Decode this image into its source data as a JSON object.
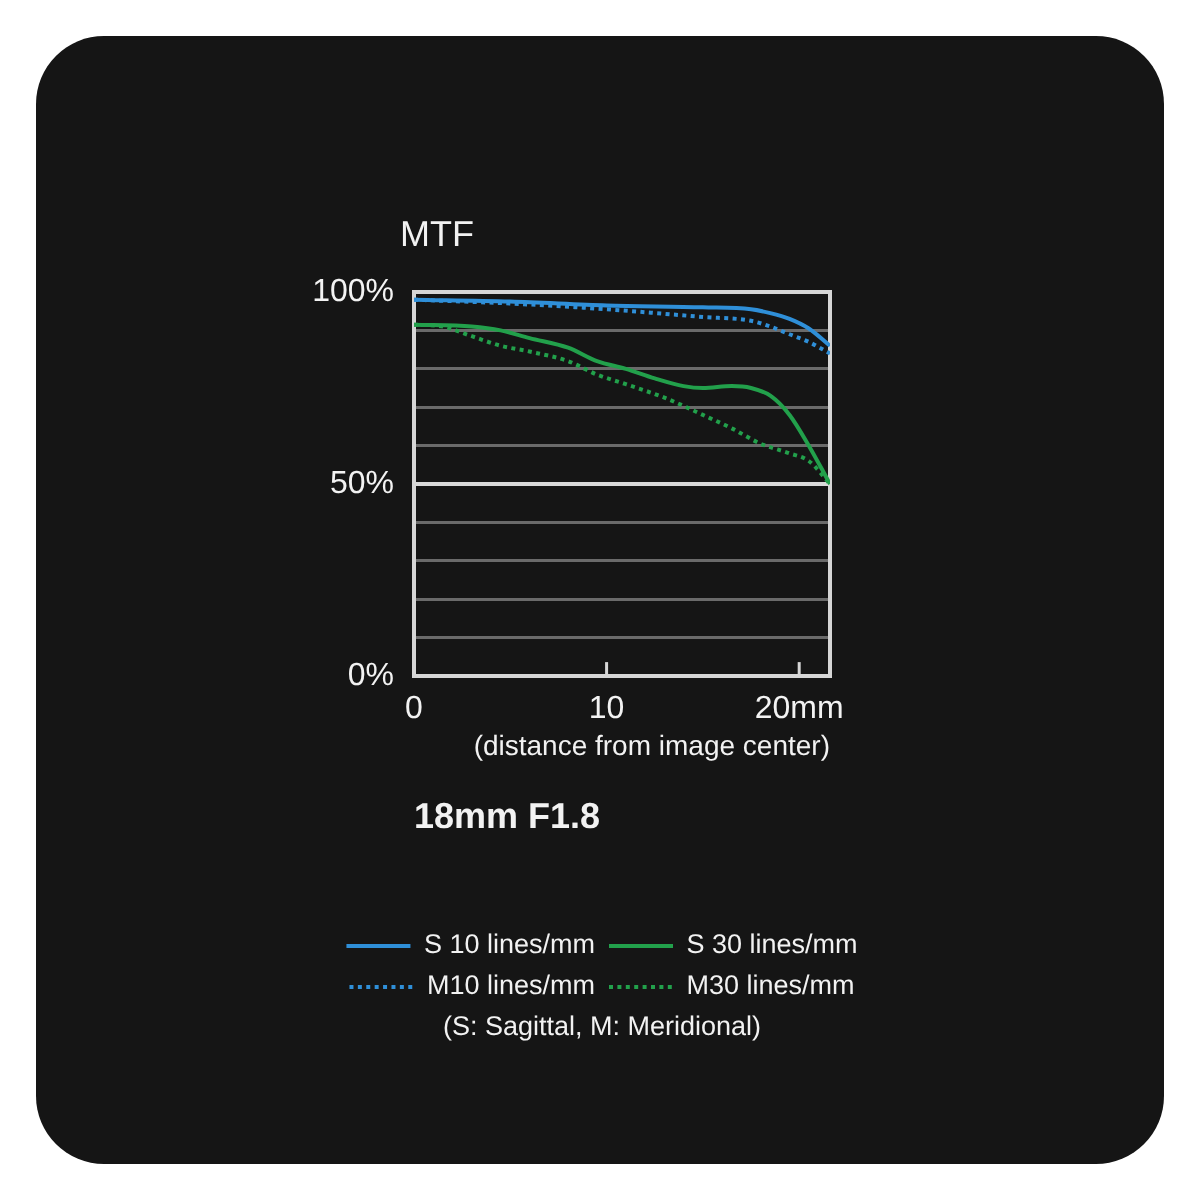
{
  "chart_data": {
    "type": "line",
    "title": "18mm F1.8",
    "xlabel": "(distance from image center)",
    "ylabel": "MTF",
    "annotations": [
      "(S: Sagittal, M: Meridional)"
    ],
    "xlim": [
      0,
      21.6
    ],
    "xticks": [
      0,
      10,
      {
        "value": 20,
        "label": "20mm"
      }
    ],
    "ylim": [
      0,
      100
    ],
    "yticks": [
      {
        "value": 0,
        "label": "0%"
      },
      {
        "value": 10,
        "label": null
      },
      {
        "value": 20,
        "label": null
      },
      {
        "value": 30,
        "label": null
      },
      {
        "value": 40,
        "label": null
      },
      {
        "value": 50,
        "label": "50%"
      },
      {
        "value": 60,
        "label": null
      },
      {
        "value": 70,
        "label": null
      },
      {
        "value": 80,
        "label": null
      },
      {
        "value": 90,
        "label": null
      },
      {
        "value": 100,
        "label": "100%"
      }
    ],
    "grid": "y",
    "legend": "bottom",
    "marker": "none",
    "ref_lines": [
      {
        "axis": "y",
        "value": 50,
        "color": "#d9d9d9"
      }
    ],
    "series": [
      {
        "name": "S 10 lines/mm",
        "color": "#2f8fd8",
        "line_style": "solid",
        "x": [
          0,
          5,
          10,
          15,
          17.5,
          18.5,
          19.5,
          20.5,
          21.6
        ],
        "values": [
          98,
          97.5,
          96.5,
          96,
          95.5,
          94.5,
          93,
          90.5,
          86
        ]
      },
      {
        "name": "S 30 lines/mm",
        "color": "#22a04b",
        "line_style": "solid",
        "x": [
          0,
          3,
          4.5,
          6,
          8,
          9.5,
          11,
          12.5,
          14,
          15,
          16.5,
          17.5,
          18.5,
          19.5,
          20.5,
          21.6
        ],
        "values": [
          91.5,
          91,
          90,
          88,
          85.5,
          82,
          80,
          77.5,
          75.5,
          75,
          75.5,
          75,
          73,
          68,
          60,
          50
        ]
      },
      {
        "name": "M10 lines/mm",
        "color": "#2f8fd8",
        "line_style": "dotted",
        "x": [
          0,
          5,
          10,
          15,
          17.5,
          18.5,
          19.5,
          20.5,
          21.6
        ],
        "values": [
          98,
          97,
          95.5,
          93.5,
          92.5,
          91,
          89,
          87,
          84
        ]
      },
      {
        "name": "M30 lines/mm",
        "color": "#22a04b",
        "line_style": "dotted",
        "x": [
          0,
          1.5,
          3,
          4.5,
          6,
          8,
          9.5,
          11,
          13,
          15,
          16.5,
          18,
          19.5,
          20.5,
          21.6
        ],
        "values": [
          91.5,
          91,
          88.5,
          86,
          84.5,
          82,
          78.5,
          76,
          72.5,
          68,
          64.5,
          60.5,
          58,
          56,
          50
        ]
      }
    ]
  }
}
